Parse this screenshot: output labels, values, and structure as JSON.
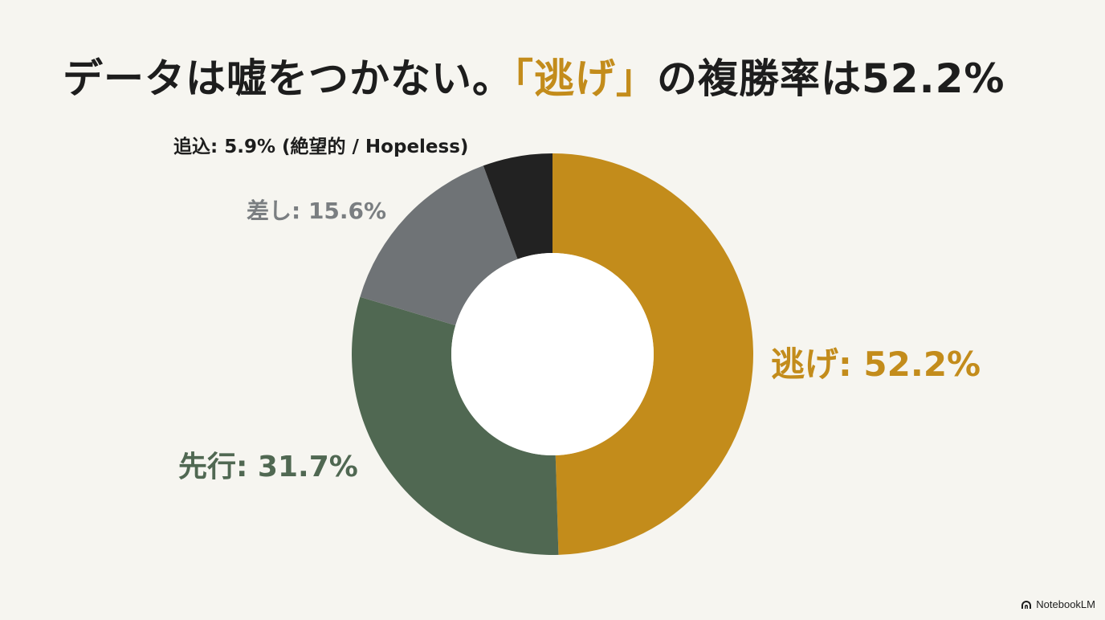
{
  "title": {
    "prefix": "データは嘘をつかない。",
    "accent": "「逃げ」",
    "suffix": "の複勝率は52.2%"
  },
  "chart_data": {
    "type": "pie",
    "donut": true,
    "title": "データは嘘をつかない。「逃げ」の複勝率は52.2%",
    "slices": [
      {
        "name": "逃げ",
        "value": 52.2,
        "label": "逃げ: 52.2%",
        "color": "#c38c1b"
      },
      {
        "name": "先行",
        "value": 31.7,
        "label": "先行: 31.7%",
        "color": "#506852"
      },
      {
        "name": "差し",
        "value": 15.6,
        "label": "差し: 15.6%",
        "color": "#6f7376"
      },
      {
        "name": "追込",
        "value": 5.9,
        "label": "追込: 5.9% (絶望的 / Hopeless)",
        "color": "#222222"
      }
    ],
    "start": "12 o'clock",
    "direction": "clockwise"
  },
  "label_styles": {
    "逃げ": {
      "color": "#c38c1b"
    },
    "先行": {
      "color": "#506852"
    },
    "差し": {
      "color": "#7a7e81"
    },
    "追込": {
      "color": "#1d1d1d"
    }
  },
  "brand": {
    "text": "NotebookLM"
  }
}
